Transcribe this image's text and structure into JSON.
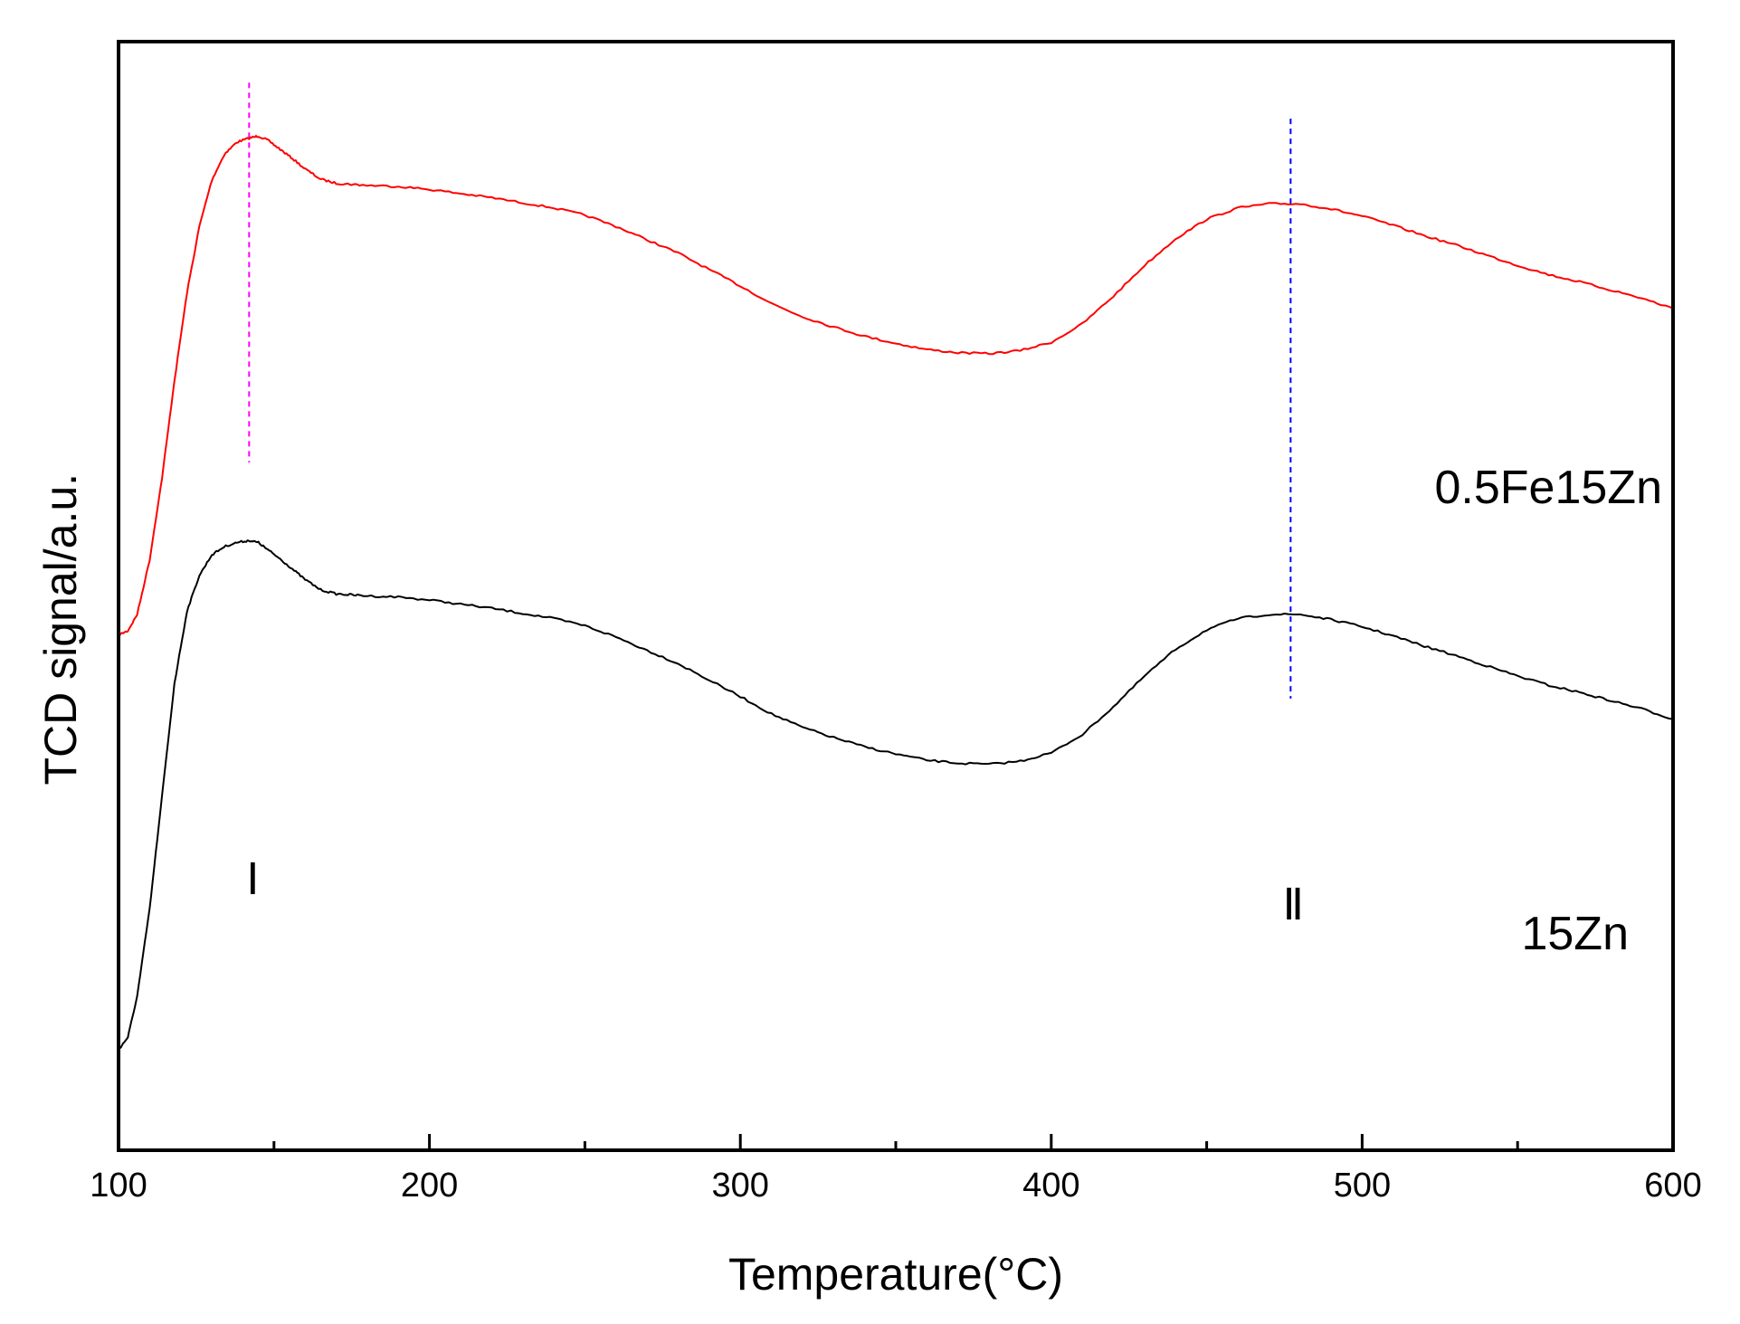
{
  "chart_data": {
    "type": "line",
    "title": "",
    "xlabel": "Temperature(°C)",
    "ylabel": "TCD signal/a.u.",
    "xlim": [
      100,
      600
    ],
    "xticks": [
      100,
      200,
      300,
      400,
      500,
      600
    ],
    "xtick_labels": [
      "100",
      "200",
      "300",
      "400",
      "500",
      "600"
    ],
    "y_ticks_labeled": false,
    "grid": false,
    "legend": "inline labels at right",
    "series": [
      {
        "name": "0.5Fe15Zn",
        "color": "#ff0000",
        "x": [
          100,
          103,
          106,
          110,
          114,
          118,
          122,
          126,
          130,
          134,
          138,
          142,
          145,
          148,
          152,
          156,
          160,
          165,
          170,
          175,
          180,
          190,
          200,
          210,
          220,
          230,
          240,
          250,
          260,
          270,
          280,
          290,
          300,
          310,
          320,
          330,
          340,
          350,
          360,
          370,
          380,
          390,
          400,
          410,
          420,
          430,
          440,
          450,
          460,
          470,
          480,
          490,
          500,
          510,
          520,
          530,
          540,
          550,
          560,
          570,
          580,
          590,
          600
        ],
        "y": [
          4.22,
          4.26,
          4.42,
          4.95,
          5.75,
          6.7,
          7.55,
          8.2,
          8.65,
          8.9,
          9.02,
          9.06,
          9.08,
          9.04,
          8.95,
          8.86,
          8.76,
          8.66,
          8.62,
          8.61,
          8.6,
          8.59,
          8.56,
          8.52,
          8.48,
          8.43,
          8.38,
          8.31,
          8.2,
          8.07,
          7.94,
          7.78,
          7.62,
          7.45,
          7.32,
          7.22,
          7.13,
          7.06,
          7.0,
          6.97,
          6.96,
          6.99,
          7.07,
          7.25,
          7.52,
          7.82,
          8.08,
          8.27,
          8.38,
          8.42,
          8.42,
          8.37,
          8.3,
          8.21,
          8.11,
          8.02,
          7.92,
          7.82,
          7.73,
          7.66,
          7.58,
          7.5,
          7.4
        ]
      },
      {
        "name": "15Zn",
        "color": "#000000",
        "x": [
          100,
          103,
          106,
          110,
          114,
          118,
          122,
          126,
          130,
          134,
          138,
          142,
          145,
          148,
          152,
          156,
          160,
          165,
          170,
          175,
          180,
          190,
          200,
          210,
          220,
          230,
          240,
          250,
          260,
          270,
          280,
          290,
          300,
          310,
          320,
          330,
          340,
          350,
          360,
          370,
          380,
          390,
          400,
          410,
          420,
          430,
          440,
          450,
          460,
          470,
          480,
          490,
          500,
          510,
          520,
          530,
          540,
          550,
          560,
          570,
          580,
          590,
          600
        ],
        "y": [
          0.18,
          0.3,
          0.7,
          1.55,
          2.65,
          3.75,
          4.45,
          4.8,
          5.0,
          5.08,
          5.12,
          5.14,
          5.12,
          5.05,
          4.96,
          4.86,
          4.76,
          4.66,
          4.62,
          4.61,
          4.6,
          4.59,
          4.56,
          4.52,
          4.48,
          4.43,
          4.38,
          4.31,
          4.2,
          4.07,
          3.94,
          3.78,
          3.62,
          3.45,
          3.32,
          3.22,
          3.13,
          3.06,
          3.0,
          2.97,
          2.96,
          2.99,
          3.07,
          3.25,
          3.52,
          3.82,
          4.08,
          4.27,
          4.38,
          4.42,
          4.42,
          4.37,
          4.3,
          4.21,
          4.11,
          4.02,
          3.92,
          3.82,
          3.73,
          3.66,
          3.58,
          3.5,
          3.4
        ]
      }
    ],
    "annotations": [
      {
        "label": "Ⅰ",
        "x": 142,
        "color": "#ff00ff",
        "line_y": [
          5.9,
          9.6
        ]
      },
      {
        "label": "Ⅱ",
        "x": 477,
        "color": "#0000ff",
        "line_y": [
          3.6,
          9.25
        ]
      }
    ]
  }
}
